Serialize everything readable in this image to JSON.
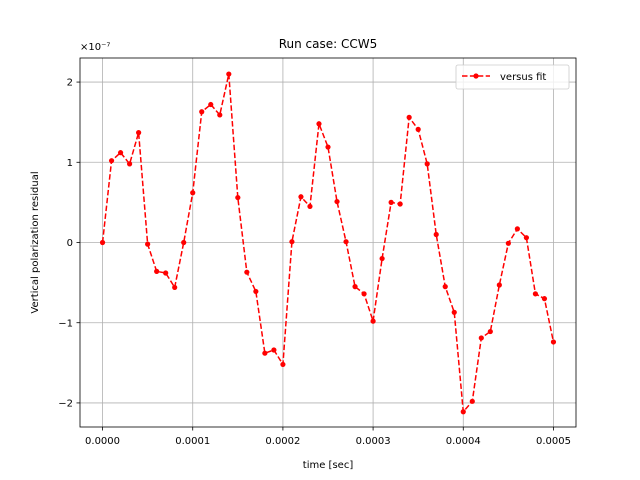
{
  "chart_data": {
    "type": "line",
    "title": "Run case: CCW5",
    "xlabel": "time [sec]",
    "ylabel": "Vertical polarization residual",
    "offset_label": "×10⁻⁷",
    "y_scale_exponent": -7,
    "xlim": [
      -2.5e-05,
      0.000525
    ],
    "ylim": [
      -2.3,
      2.3
    ],
    "x_ticks": [
      0,
      0.0001,
      0.0002,
      0.0003,
      0.0004,
      0.0005
    ],
    "x_tick_labels": [
      "0.0000",
      "0.0001",
      "0.0002",
      "0.0003",
      "0.0004",
      "0.0005"
    ],
    "y_ticks": [
      -2,
      -1,
      0,
      1,
      2
    ],
    "y_tick_labels": [
      "−2",
      "−1",
      "0",
      "1",
      "2"
    ],
    "grid": true,
    "legend_position": "top-right",
    "series": [
      {
        "name": "versus fit",
        "color": "#ff0000",
        "line_style": "dashed",
        "marker": "circle",
        "x": [
          0,
          1e-05,
          2e-05,
          3e-05,
          4e-05,
          5e-05,
          6e-05,
          7e-05,
          8e-05,
          9e-05,
          0.0001,
          0.00011,
          0.00012,
          0.00013,
          0.00014,
          0.00015,
          0.00016,
          0.00017,
          0.00018,
          0.00019,
          0.0002,
          0.00021,
          0.00022,
          0.00023,
          0.00024,
          0.00025,
          0.00026,
          0.00027,
          0.00028,
          0.00029,
          0.0003,
          0.00031,
          0.00032,
          0.00033,
          0.00034,
          0.00035,
          0.00036,
          0.00037,
          0.00038,
          0.00039,
          0.0004,
          0.00041,
          0.00042,
          0.00043,
          0.00044,
          0.00045,
          0.00046,
          0.00047,
          0.00048,
          0.00049,
          0.0005
        ],
        "y": [
          0,
          1.02,
          1.12,
          0.98,
          1.37,
          -0.02,
          -0.36,
          -0.38,
          -0.56,
          0.0,
          0.62,
          1.63,
          1.72,
          1.59,
          2.1,
          0.56,
          -0.37,
          -0.61,
          -1.38,
          -1.34,
          -1.52,
          0.01,
          0.57,
          0.45,
          1.48,
          1.19,
          0.51,
          0.01,
          -0.55,
          -0.64,
          -0.98,
          -0.2,
          0.5,
          0.48,
          1.56,
          1.41,
          0.98,
          0.1,
          -0.55,
          -0.87,
          -2.11,
          -1.98,
          -1.19,
          -1.11,
          -0.53,
          -0.01,
          0.17,
          0.06,
          -0.64,
          -0.7,
          -1.24
        ]
      }
    ]
  }
}
